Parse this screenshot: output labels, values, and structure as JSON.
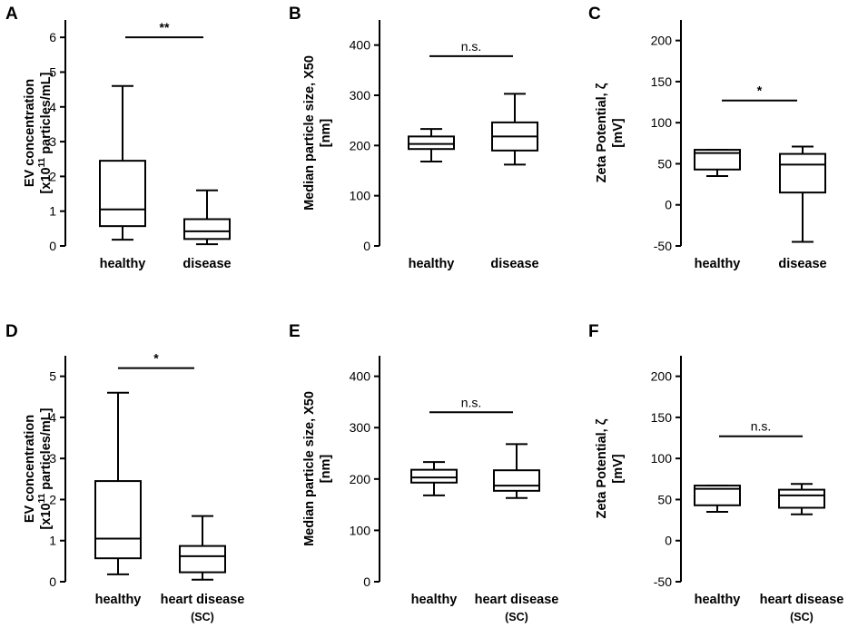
{
  "chart_data": [
    {
      "panel": "A",
      "type": "box",
      "ylabel_line1": "EV concentration",
      "ylabel_line2_pre": "[x10",
      "ylabel_line2_sup": "11",
      "ylabel_line2_post": " particles/mL]",
      "ylim": [
        0,
        6.5
      ],
      "yticks": [
        0,
        1,
        2,
        3,
        4,
        5,
        6
      ],
      "categories": [
        {
          "label": "healthy",
          "sub": ""
        },
        {
          "label": "disease",
          "sub": ""
        }
      ],
      "boxes": [
        {
          "min": 0.18,
          "q1": 0.57,
          "median": 1.05,
          "q3": 2.45,
          "max": 4.6
        },
        {
          "min": 0.05,
          "q1": 0.2,
          "median": 0.42,
          "q3": 0.77,
          "max": 1.6
        }
      ],
      "significance": {
        "label": "**",
        "y": 6.0,
        "style": "star"
      }
    },
    {
      "panel": "B",
      "type": "box",
      "ylabel_line1": "Median particle size, X50",
      "ylabel_line2_pre": "[nm]",
      "ylabel_line2_sup": "",
      "ylabel_line2_post": "",
      "ylim": [
        0,
        450
      ],
      "yticks": [
        0,
        100,
        200,
        300,
        400
      ],
      "categories": [
        {
          "label": "healthy",
          "sub": ""
        },
        {
          "label": "disease",
          "sub": ""
        }
      ],
      "boxes": [
        {
          "min": 168,
          "q1": 193,
          "median": 203,
          "q3": 218,
          "max": 233
        },
        {
          "min": 162,
          "q1": 190,
          "median": 218,
          "q3": 246,
          "max": 303
        }
      ],
      "significance": {
        "label": "n.s.",
        "y": 378,
        "style": "text"
      }
    },
    {
      "panel": "C",
      "type": "box",
      "ylabel_line1": "Zeta Potential, ζ",
      "ylabel_line2_pre": "[mV]",
      "ylabel_line2_sup": "",
      "ylabel_line2_post": "",
      "ylim": [
        -50,
        225
      ],
      "yticks": [
        -50,
        0,
        50,
        100,
        150,
        200
      ],
      "categories": [
        {
          "label": "healthy",
          "sub": ""
        },
        {
          "label": "disease",
          "sub": ""
        }
      ],
      "boxes": [
        {
          "min": 35,
          "q1": 43,
          "median": 63,
          "q3": 67,
          "max": 67
        },
        {
          "min": -45,
          "q1": 15,
          "median": 49,
          "q3": 62,
          "max": 71
        }
      ],
      "significance": {
        "label": "*",
        "y": 127,
        "style": "star"
      }
    },
    {
      "panel": "D",
      "type": "box",
      "ylabel_line1": "EV concentration",
      "ylabel_line2_pre": "[x10",
      "ylabel_line2_sup": "11",
      "ylabel_line2_post": " particles/mL]",
      "ylim": [
        0,
        5.5
      ],
      "yticks": [
        0,
        1,
        2,
        3,
        4,
        5
      ],
      "categories": [
        {
          "label": "healthy",
          "sub": ""
        },
        {
          "label": "heart disease",
          "sub": "(SC)"
        }
      ],
      "boxes": [
        {
          "min": 0.18,
          "q1": 0.57,
          "median": 1.05,
          "q3": 2.45,
          "max": 4.6
        },
        {
          "min": 0.05,
          "q1": 0.23,
          "median": 0.62,
          "q3": 0.87,
          "max": 1.6
        }
      ],
      "significance": {
        "label": "*",
        "y": 5.2,
        "style": "star"
      }
    },
    {
      "panel": "E",
      "type": "box",
      "ylabel_line1": "Median particle size, X50",
      "ylabel_line2_pre": "[nm]",
      "ylabel_line2_sup": "",
      "ylabel_line2_post": "",
      "ylim": [
        0,
        440
      ],
      "yticks": [
        0,
        100,
        200,
        300,
        400
      ],
      "categories": [
        {
          "label": "healthy",
          "sub": ""
        },
        {
          "label": "heart disease",
          "sub": "(SC)"
        }
      ],
      "boxes": [
        {
          "min": 168,
          "q1": 193,
          "median": 203,
          "q3": 218,
          "max": 233
        },
        {
          "min": 163,
          "q1": 177,
          "median": 187,
          "q3": 217,
          "max": 268
        }
      ],
      "significance": {
        "label": "n.s.",
        "y": 330,
        "style": "text"
      }
    },
    {
      "panel": "F",
      "type": "box",
      "ylabel_line1": "Zeta Potential, ζ",
      "ylabel_line2_pre": "[mV]",
      "ylabel_line2_sup": "",
      "ylabel_line2_post": "",
      "ylim": [
        -50,
        225
      ],
      "yticks": [
        -50,
        0,
        50,
        100,
        150,
        200
      ],
      "categories": [
        {
          "label": "healthy",
          "sub": ""
        },
        {
          "label": "heart disease",
          "sub": "(SC)"
        }
      ],
      "boxes": [
        {
          "min": 35,
          "q1": 43,
          "median": 63,
          "q3": 67,
          "max": 67
        },
        {
          "min": 32,
          "q1": 40,
          "median": 55,
          "q3": 62,
          "max": 69
        }
      ],
      "significance": {
        "label": "n.s.",
        "y": 127,
        "style": "text"
      }
    }
  ]
}
